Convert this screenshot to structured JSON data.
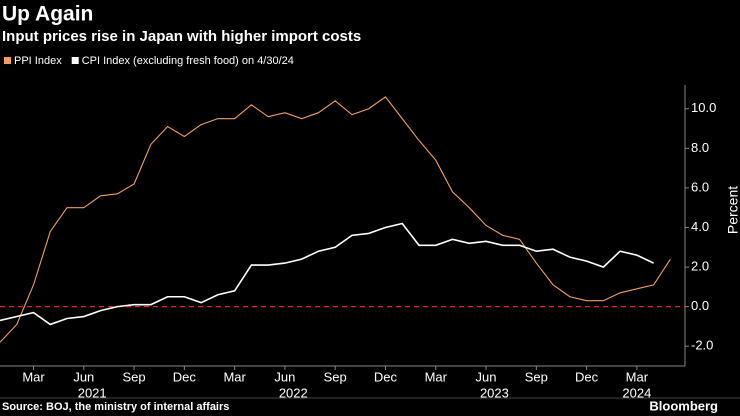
{
  "chart_data": {
    "type": "line",
    "title": "Up Again",
    "subtitle": "Input prices rise in Japan with higher import costs",
    "y_label": "Percent",
    "source": "Source: BOJ, the ministry of internal affairs",
    "brand": "Bloomberg",
    "categories": [
      null,
      null,
      "Mar",
      null,
      null,
      "Jun",
      null,
      null,
      "Sep",
      null,
      null,
      "Dec",
      null,
      null,
      "Mar",
      null,
      null,
      "Jun",
      null,
      null,
      "Sep",
      null,
      null,
      "Dec",
      null,
      null,
      "Mar",
      null,
      null,
      "Jun",
      null,
      null,
      "Sep",
      null,
      null,
      "Dec",
      null,
      null,
      "Mar",
      null,
      null
    ],
    "years": [
      "2021",
      "2022",
      "2023",
      "2024"
    ],
    "series": [
      {
        "name": "PPI Index",
        "color": "#f0a05e",
        "values": [
          -1.8,
          -0.9,
          1.1,
          3.8,
          5.0,
          5.0,
          5.6,
          5.7,
          6.2,
          8.2,
          9.1,
          8.6,
          9.2,
          9.5,
          9.5,
          10.2,
          9.6,
          9.8,
          9.5,
          9.8,
          10.4,
          9.7,
          10.0,
          10.6,
          9.5,
          8.4,
          7.4,
          5.8,
          5.0,
          4.1,
          3.6,
          3.4,
          2.2,
          1.1,
          0.5,
          0.3,
          0.3,
          0.7,
          0.9,
          1.1,
          2.4
        ]
      },
      {
        "name": "CPI Index (excluding fresh food) on 4/30/24",
        "color": "#ffffff",
        "values": [
          -0.7,
          -0.5,
          -0.3,
          -0.9,
          -0.6,
          -0.5,
          -0.2,
          0.0,
          0.1,
          0.1,
          0.5,
          0.5,
          0.2,
          0.6,
          0.8,
          2.1,
          2.1,
          2.2,
          2.4,
          2.8,
          3.0,
          3.6,
          3.7,
          4.0,
          4.2,
          3.1,
          3.1,
          3.4,
          3.2,
          3.3,
          3.1,
          3.1,
          2.8,
          2.9,
          2.5,
          2.3,
          2.0,
          2.8,
          2.6,
          2.2,
          null
        ]
      }
    ],
    "ylim": [
      -3,
      11.2
    ],
    "yticks": [
      {
        "value": -2,
        "label": "-2.0"
      },
      {
        "value": 0,
        "label": "0.0"
      },
      {
        "value": 2,
        "label": "2.0"
      },
      {
        "value": 4,
        "label": "4.0"
      },
      {
        "value": 6,
        "label": "6.0"
      },
      {
        "value": 8,
        "label": "8.0"
      },
      {
        "value": 10,
        "label": "10.0"
      }
    ],
    "zero_line_color": "#e0242a",
    "legend": "top-left"
  }
}
